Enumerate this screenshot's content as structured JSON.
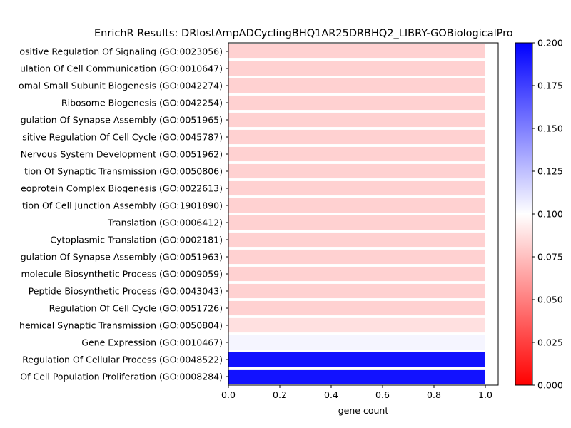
{
  "chart_data": {
    "type": "bar",
    "orientation": "horizontal",
    "title": "EnrichR Results: DRlostAmpADCyclingBHQ1AR25DRBHQ2_LIBRY-GOBiologicalPro",
    "xlabel": "gene count",
    "ylabel": "",
    "xlim": [
      0,
      1.05
    ],
    "xticks": [
      "0.0",
      "0.2",
      "0.4",
      "0.6",
      "0.8",
      "1.0"
    ],
    "grid": false,
    "categories": [
      "ositive Regulation Of Signaling (GO:0023056)",
      "ulation Of Cell Communication (GO:0010647)",
      "omal Small Subunit Biogenesis (GO:0042274)",
      "Ribosome Biogenesis (GO:0042254)",
      "gulation Of Synapse Assembly (GO:0051965)",
      "sitive Regulation Of Cell Cycle (GO:0045787)",
      "Nervous System Development (GO:0051962)",
      "tion Of Synaptic Transmission (GO:0050806)",
      "eoprotein Complex Biogenesis (GO:0022613)",
      "tion Of Cell Junction Assembly (GO:1901890)",
      "Translation (GO:0006412)",
      "Cytoplasmic Translation (GO:0002181)",
      "gulation Of Synapse Assembly (GO:0051963)",
      "molecule Biosynthetic Process (GO:0009059)",
      "Peptide Biosynthetic Process (GO:0043043)",
      "Regulation Of Cell Cycle (GO:0051726)",
      "hemical Synaptic Transmission (GO:0050804)",
      "Gene Expression (GO:0010467)",
      "Regulation Of Cellular Process (GO:0048522)",
      "Of Cell Population Proliferation (GO:0008284)"
    ],
    "values": [
      1,
      1,
      1,
      1,
      1,
      1,
      1,
      1,
      1,
      1,
      1,
      1,
      1,
      1,
      1,
      1,
      1,
      1,
      1,
      1
    ],
    "color_values": [
      0.082,
      0.082,
      0.082,
      0.082,
      0.082,
      0.082,
      0.082,
      0.082,
      0.082,
      0.082,
      0.082,
      0.082,
      0.082,
      0.082,
      0.082,
      0.082,
      0.088,
      0.104,
      0.193,
      0.193
    ],
    "colorbar": {
      "range": [
        0,
        0.2
      ],
      "ticks": [
        "0.000",
        "0.025",
        "0.050",
        "0.075",
        "0.100",
        "0.125",
        "0.150",
        "0.175",
        "0.200"
      ],
      "colormap": "bwr_r",
      "colors": {
        "low": "#ff0000",
        "mid": "#ffffff",
        "high": "#0000ff"
      }
    }
  }
}
